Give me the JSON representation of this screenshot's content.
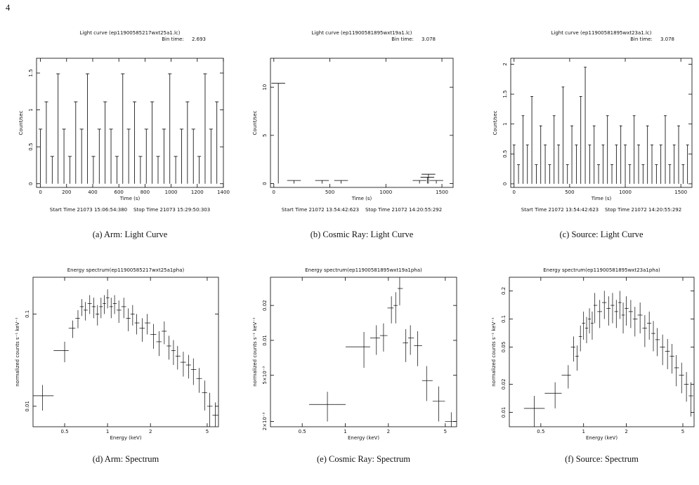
{
  "page_number": "4",
  "chart_data": [
    {
      "type": "bar",
      "title": "Light curve (ep11900585217wxt25a1.lc)",
      "subtitle": "Bin time:     2.693",
      "x_label": "Time (s)",
      "y_label": "Count/sec",
      "footer": "Start Time 21073 15:06:54:380    Stop Time 21073 15:29:50:303",
      "caption": "(a) Arm: Light Curve",
      "color": "#000",
      "x": [
        0,
        45,
        90,
        135,
        180,
        225,
        270,
        315,
        360,
        405,
        450,
        495,
        540,
        585,
        630,
        675,
        720,
        765,
        810,
        855,
        900,
        945,
        990,
        1035,
        1080,
        1125,
        1170,
        1215,
        1260,
        1305,
        1350
      ],
      "values": [
        0.74,
        1.11,
        0.37,
        1.49,
        0.74,
        0.37,
        1.11,
        0.74,
        1.49,
        0.37,
        0.74,
        1.11,
        0.74,
        0.37,
        1.49,
        0.74,
        1.11,
        0.37,
        0.74,
        1.11,
        0.37,
        0.74,
        1.49,
        0.37,
        0.74,
        1.11,
        0.74,
        0.37,
        1.49,
        0.74,
        1.11
      ],
      "xlim": [
        -30,
        1400
      ],
      "ylim": [
        -0.05,
        1.7
      ],
      "xticks": [
        0,
        200,
        400,
        600,
        800,
        1000,
        1200,
        1400
      ],
      "yticks": [
        0,
        0.5,
        1,
        1.5
      ],
      "xlog": false,
      "ylog": false
    },
    {
      "type": "bar",
      "title": "Light curve (ep11900581895wxt19a1.lc)",
      "subtitle": "Bin time:     3.078",
      "x_label": "Time (s)",
      "y_label": "Count/sec",
      "footer": "Start Time 21072 13:54:42:623    Stop Time 21072 14:20:55:292",
      "caption": "(b) Cosmic Ray: Light Curve",
      "color": "#000",
      "x": [
        40,
        180,
        430,
        600,
        1300,
        1370,
        1380,
        1450
      ],
      "values": [
        10.4,
        0.32,
        0.32,
        0.32,
        0.32,
        0.65,
        0.97,
        0.32
      ],
      "xlim": [
        -30,
        1600
      ],
      "ylim": [
        -0.4,
        13
      ],
      "xticks": [
        0,
        500,
        1000,
        1500
      ],
      "yticks": [
        0,
        5,
        10
      ],
      "xlog": false,
      "ylog": false
    },
    {
      "type": "bar",
      "title": "Light curve (ep11900581895wxt23a1.lc)",
      "subtitle": "Bin time:     3.078",
      "x_label": "Time (s)",
      "y_label": "Count/sec",
      "footer": "Start Time 21072 13:54:42:623    Stop Time 21072 14:20:55:292",
      "caption": "(c) Source: Light Curve",
      "color": "#000",
      "x": [
        0,
        40,
        80,
        120,
        160,
        200,
        240,
        280,
        320,
        360,
        400,
        440,
        480,
        520,
        560,
        600,
        640,
        680,
        720,
        760,
        800,
        840,
        880,
        920,
        960,
        1000,
        1040,
        1080,
        1120,
        1160,
        1200,
        1240,
        1280,
        1320,
        1360,
        1400,
        1440,
        1480,
        1520,
        1560
      ],
      "values": [
        0.65,
        0.32,
        1.14,
        0.65,
        1.46,
        0.32,
        0.97,
        0.65,
        0.32,
        1.14,
        0.65,
        1.62,
        0.32,
        0.97,
        0.65,
        1.46,
        1.95,
        0.65,
        0.97,
        0.32,
        0.65,
        1.14,
        0.32,
        0.65,
        0.97,
        0.65,
        0.32,
        1.14,
        0.65,
        0.32,
        0.97,
        0.65,
        0.32,
        0.65,
        1.14,
        0.32,
        0.65,
        0.97,
        0.32,
        0.65
      ],
      "xlim": [
        -30,
        1600
      ],
      "ylim": [
        -0.06,
        2.1
      ],
      "xticks": [
        0,
        500,
        1000,
        1500
      ],
      "yticks": [
        0,
        0.5,
        1,
        1.5,
        2
      ],
      "xlog": false,
      "ylog": false
    },
    {
      "type": "scatter",
      "title": "Energy spectrum(ep11900585217wxt25a1pha)",
      "x_label": "Energy (keV)",
      "y_label": "normalized counts s⁻¹ keV⁻¹",
      "caption": "(d) Arm: Spectrum",
      "color": "#000",
      "x": [
        0.35,
        0.5,
        0.57,
        0.62,
        0.66,
        0.7,
        0.75,
        0.8,
        0.85,
        0.9,
        0.95,
        1.0,
        1.06,
        1.12,
        1.2,
        1.3,
        1.4,
        1.5,
        1.6,
        1.75,
        1.9,
        2.1,
        2.3,
        2.5,
        2.7,
        2.9,
        3.1,
        3.4,
        3.7,
        4.0,
        4.4,
        4.8,
        5.2,
        5.7
      ],
      "values": [
        0.013,
        0.04,
        0.07,
        0.09,
        0.12,
        0.11,
        0.13,
        0.12,
        0.1,
        0.12,
        0.13,
        0.15,
        0.12,
        0.13,
        0.11,
        0.12,
        0.09,
        0.1,
        0.08,
        0.07,
        0.08,
        0.06,
        0.05,
        0.065,
        0.045,
        0.04,
        0.035,
        0.03,
        0.028,
        0.025,
        0.02,
        0.014,
        0.01,
        0.008
      ],
      "errors": [
        0.004,
        0.01,
        0.015,
        0.02,
        0.025,
        0.025,
        0.03,
        0.03,
        0.025,
        0.03,
        0.03,
        0.035,
        0.03,
        0.03,
        0.03,
        0.03,
        0.025,
        0.025,
        0.02,
        0.02,
        0.02,
        0.018,
        0.015,
        0.018,
        0.013,
        0.012,
        0.01,
        0.009,
        0.008,
        0.008,
        0.006,
        0.005,
        0.004,
        0.003
      ],
      "xlim": [
        0.3,
        6
      ],
      "ylim": [
        0.006,
        0.25
      ],
      "xticks": [
        0.5,
        1,
        2,
        5
      ],
      "yticks": [
        0.01,
        0.1
      ],
      "xlog": true,
      "ylog": true
    },
    {
      "type": "scatter",
      "title": "Energy spectrum(ep11900581895wxt19a1pha)",
      "x_label": "Energy (keV)",
      "y_label": "normalized counts s⁻¹ keV⁻¹",
      "caption": "(e) Cosmic Ray: Spectrum",
      "color": "#000",
      "x": [
        0.75,
        1.35,
        1.65,
        1.85,
        2.1,
        2.25,
        2.4,
        2.65,
        2.85,
        3.2,
        3.7,
        4.5,
        5.5
      ],
      "values": [
        0.0028,
        0.0088,
        0.0105,
        0.011,
        0.019,
        0.02,
        0.028,
        0.0095,
        0.0105,
        0.009,
        0.0045,
        0.003,
        0.002
      ],
      "errors": [
        0.0008,
        0.003,
        0.003,
        0.003,
        0.005,
        0.006,
        0.008,
        0.003,
        0.003,
        0.003,
        0.0015,
        0.001,
        0.0004
      ],
      "xlim": [
        0.3,
        6
      ],
      "ylim": [
        0.0018,
        0.035
      ],
      "xticks": [
        0.5,
        1,
        2,
        5
      ],
      "yticks": [
        {
          "value": 0.002,
          "label": "2×10⁻³"
        },
        {
          "value": 0.005,
          "label": "5×10⁻³"
        },
        0.01,
        0.02
      ],
      "xlog": true,
      "ylog": true
    },
    {
      "type": "scatter",
      "title": "Energy spectrum(ep11900581895wxt23a1pha)",
      "x_label": "Energy (keV)",
      "y_label": "normalized counts s⁻¹ keV⁻¹",
      "caption": "(f) Source: Spectrum",
      "color": "#000",
      "x": [
        0.45,
        0.63,
        0.78,
        0.85,
        0.9,
        0.95,
        1.0,
        1.05,
        1.1,
        1.15,
        1.2,
        1.3,
        1.4,
        1.5,
        1.6,
        1.7,
        1.8,
        1.9,
        2.0,
        2.15,
        2.3,
        2.5,
        2.7,
        2.9,
        3.1,
        3.3,
        3.6,
        3.9,
        4.2,
        4.5,
        4.9,
        5.3,
        5.7
      ],
      "values": [
        0.011,
        0.016,
        0.025,
        0.05,
        0.04,
        0.065,
        0.09,
        0.08,
        0.1,
        0.09,
        0.14,
        0.12,
        0.15,
        0.13,
        0.14,
        0.12,
        0.15,
        0.11,
        0.13,
        0.12,
        0.1,
        0.11,
        0.08,
        0.09,
        0.07,
        0.06,
        0.05,
        0.045,
        0.04,
        0.03,
        0.025,
        0.02,
        0.015
      ],
      "errors": [
        0.004,
        0.005,
        0.007,
        0.015,
        0.012,
        0.02,
        0.03,
        0.025,
        0.03,
        0.03,
        0.05,
        0.04,
        0.05,
        0.045,
        0.05,
        0.04,
        0.05,
        0.04,
        0.045,
        0.04,
        0.035,
        0.04,
        0.03,
        0.03,
        0.025,
        0.02,
        0.018,
        0.016,
        0.014,
        0.011,
        0.009,
        0.007,
        0.006
      ],
      "xlim": [
        0.3,
        6
      ],
      "ylim": [
        0.007,
        0.28
      ],
      "xticks": [
        0.5,
        1,
        2,
        5
      ],
      "yticks": [
        0.01,
        0.02,
        0.05,
        0.1,
        0.2
      ],
      "xlog": true,
      "ylog": true
    }
  ]
}
